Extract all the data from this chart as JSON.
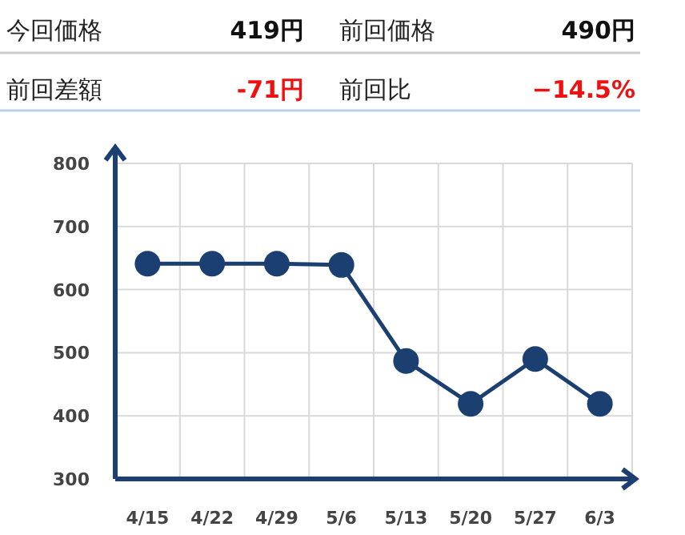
{
  "chart_data": [
    {
      "type": "other",
      "annotations": [
        "今回価格",
        "419円",
        "前回価格",
        "490円",
        "前回差額",
        "-71円",
        "前回比",
        "−14.5%"
      ],
      "colors": [
        "#222222",
        "#111111",
        "#222222",
        "#111111",
        "#222222",
        "#ee1111",
        "#222222",
        "#ee1111"
      ]
    },
    {
      "type": "line",
      "categories": [
        "4/15",
        "4/22",
        "4/29",
        "5/6",
        "5/13",
        "5/20",
        "5/27",
        "6/3"
      ],
      "series": [
        {
          "color": "#1c3f72",
          "values": [
            641,
            641,
            641,
            639,
            487,
            419,
            490,
            419
          ]
        }
      ],
      "ylim": [
        300,
        800
      ],
      "yticks": [
        300,
        400,
        500,
        600,
        700,
        800
      ],
      "grid": true,
      "marker": "circle",
      "line_style": "solid"
    }
  ]
}
